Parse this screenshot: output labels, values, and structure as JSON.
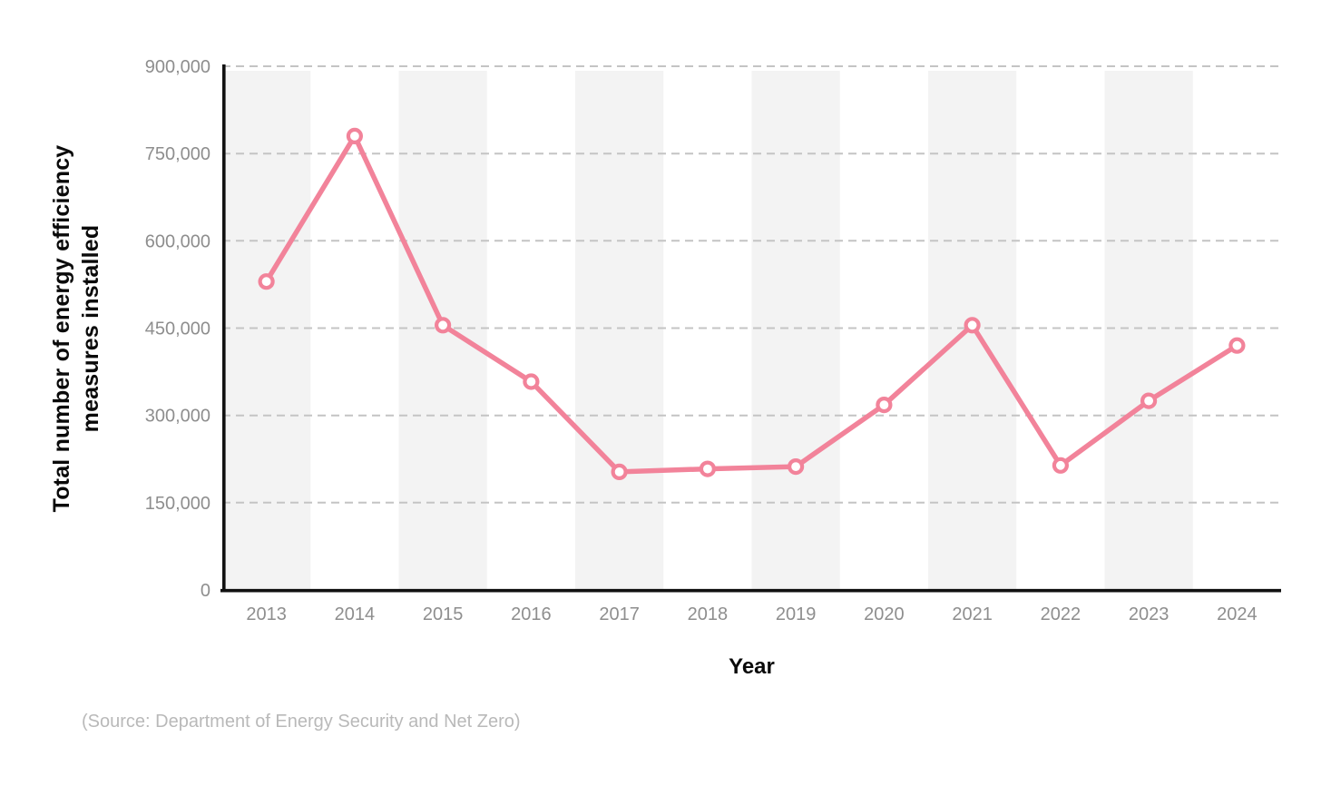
{
  "source_note": "(Source: Department of Energy Security and Net Zero)",
  "chart_data": {
    "type": "line",
    "title": "",
    "xlabel": "Year",
    "ylabel": "Total number of energy efficiency measures installed",
    "ylabel_lines": [
      "Total number of energy efficiency",
      "measures installed"
    ],
    "categories": [
      "2013",
      "2014",
      "2015",
      "2016",
      "2017",
      "2018",
      "2019",
      "2020",
      "2021",
      "2022",
      "2023",
      "2024"
    ],
    "series": [
      {
        "name": "Total number of energy efficiency measures installed",
        "values": [
          530000,
          780000,
          455000,
          358000,
          203000,
          208000,
          212000,
          318000,
          455000,
          214000,
          325000,
          420000
        ]
      }
    ],
    "ylim": [
      0,
      900000
    ],
    "yticks": [
      0,
      150000,
      300000,
      450000,
      600000,
      750000,
      900000
    ],
    "ytick_labels": [
      "0",
      "150,000",
      "300,000",
      "450,000",
      "600,000",
      "750,000",
      "900,000"
    ],
    "grid": "horizontal-dashed",
    "legend": "none",
    "background_bands": "alternating-vertical",
    "colors": {
      "line": "#F2839A",
      "marker_fill": "#FFFFFF",
      "band": "#F3F3F3",
      "gridline": "#C4C4C4",
      "axis": "#111111",
      "tick_label": "#8E8E8E",
      "axis_title": "#0A0A0A",
      "source": "#B9B9B9"
    }
  }
}
